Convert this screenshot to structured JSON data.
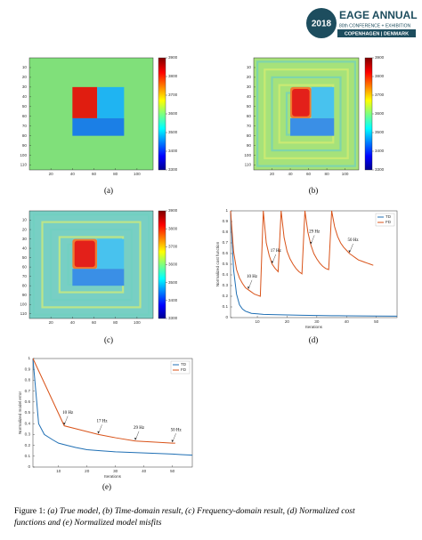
{
  "logo": {
    "year": "2018",
    "title": "EAGE ANNUAL",
    "subtitle": "80th CONFERENCE + EXHIBITION",
    "location": "COPENHAGEN | DENMARK"
  },
  "chart_data": [
    {
      "type": "heatmap",
      "variant": "true",
      "xlim": [
        0,
        115
      ],
      "ylim": [
        0,
        115
      ],
      "xticks": [
        20,
        40,
        60,
        80,
        100
      ],
      "yticks": [
        10,
        20,
        30,
        40,
        50,
        60,
        70,
        80,
        90,
        100,
        110
      ],
      "clim": [
        3300,
        3900
      ],
      "cticks": [
        3300,
        3400,
        3500,
        3600,
        3700,
        3800,
        3900
      ]
    },
    {
      "type": "heatmap",
      "variant": "td",
      "xlim": [
        0,
        115
      ],
      "ylim": [
        0,
        115
      ],
      "xticks": [
        20,
        40,
        60,
        80,
        100
      ],
      "yticks": [
        10,
        20,
        30,
        40,
        50,
        60,
        70,
        80,
        90,
        100,
        110
      ],
      "clim": [
        3300,
        3900
      ],
      "cticks": [
        3300,
        3400,
        3500,
        3600,
        3700,
        3800,
        3900
      ]
    },
    {
      "type": "heatmap",
      "variant": "fd",
      "xlim": [
        0,
        115
      ],
      "ylim": [
        0,
        115
      ],
      "xticks": [
        20,
        40,
        60,
        80,
        100
      ],
      "yticks": [
        10,
        20,
        30,
        40,
        50,
        60,
        70,
        80,
        90,
        100,
        110
      ],
      "clim": [
        3300,
        3900
      ],
      "cticks": [
        3300,
        3400,
        3500,
        3600,
        3700,
        3800,
        3900
      ]
    },
    {
      "type": "line",
      "xlabel": "Iterations",
      "ylabel": "Normalized cost function",
      "xlim": [
        1,
        57
      ],
      "ylim": [
        0,
        1
      ],
      "xticks": [
        10,
        20,
        30,
        40,
        50
      ],
      "yticks": [
        0,
        0.1,
        0.2,
        0.3,
        0.4,
        0.5,
        0.6,
        0.7,
        0.8,
        0.9,
        1
      ],
      "legend": "upper right",
      "series": [
        {
          "name": "TD",
          "color": "#1f6fb4",
          "x": [
            1,
            2,
            3,
            4,
            5,
            6,
            7,
            8,
            10,
            12,
            15,
            20,
            25,
            30,
            35,
            40,
            45,
            50,
            57
          ],
          "values": [
            1,
            0.45,
            0.22,
            0.12,
            0.08,
            0.06,
            0.05,
            0.04,
            0.035,
            0.03,
            0.028,
            0.025,
            0.022,
            0.02,
            0.018,
            0.017,
            0.016,
            0.015,
            0.014
          ]
        },
        {
          "name": "FD",
          "color": "#d95319",
          "x": [
            1,
            2,
            3,
            4,
            5,
            6,
            7,
            8,
            9,
            10,
            11,
            12,
            13,
            14,
            15,
            16,
            17,
            18,
            19,
            20,
            21,
            22,
            23,
            24,
            25,
            26,
            27,
            28,
            29,
            30,
            31,
            32,
            33,
            34,
            35,
            36,
            37,
            38,
            39,
            40,
            41,
            42,
            43,
            44,
            45,
            46,
            47,
            48,
            49
          ],
          "values": [
            1,
            0.62,
            0.45,
            0.37,
            0.32,
            0.28,
            0.26,
            0.24,
            0.22,
            0.21,
            0.2,
            1,
            0.7,
            0.58,
            0.5,
            0.46,
            0.43,
            1,
            0.75,
            0.62,
            0.55,
            0.5,
            0.46,
            0.43,
            0.41,
            1,
            0.8,
            0.68,
            0.6,
            0.55,
            0.51,
            0.48,
            0.46,
            0.45,
            1,
            0.85,
            0.76,
            0.7,
            0.66,
            0.63,
            0.6,
            0.58,
            0.56,
            0.54,
            0.53,
            0.52,
            0.51,
            0.5,
            0.49
          ]
        }
      ],
      "annotations": [
        {
          "text": "10 Hz",
          "x": 7,
          "y": 0.26
        },
        {
          "text": "17 Hz",
          "x": 15,
          "y": 0.5
        },
        {
          "text": "29 Hz",
          "x": 28,
          "y": 0.68
        },
        {
          "text": "50 Hz",
          "x": 41,
          "y": 0.6
        }
      ]
    },
    {
      "type": "line",
      "xlabel": "Iterations",
      "ylabel": "Normalized model error",
      "xlim": [
        1,
        57
      ],
      "ylim": [
        0,
        1
      ],
      "xticks": [
        10,
        20,
        30,
        40,
        50
      ],
      "yticks": [
        0,
        0.1,
        0.2,
        0.3,
        0.4,
        0.5,
        0.6,
        0.7,
        0.8,
        0.9,
        1
      ],
      "legend": "upper right",
      "series": [
        {
          "name": "TD",
          "color": "#1f6fb4",
          "x": [
            1,
            2,
            3,
            5,
            8,
            10,
            13,
            16,
            20,
            25,
            30,
            35,
            40,
            45,
            50,
            53,
            57
          ],
          "values": [
            1,
            0.7,
            0.4,
            0.3,
            0.25,
            0.22,
            0.2,
            0.18,
            0.16,
            0.15,
            0.14,
            0.135,
            0.13,
            0.125,
            0.12,
            0.115,
            0.11
          ]
        },
        {
          "name": "FD",
          "color": "#d95319",
          "x": [
            1,
            12,
            18,
            24,
            30,
            37,
            44,
            50,
            51
          ],
          "values": [
            1,
            0.38,
            0.34,
            0.3,
            0.27,
            0.24,
            0.23,
            0.22,
            0.22
          ]
        }
      ],
      "annotations": [
        {
          "text": "10 Hz",
          "x": 12,
          "y": 0.38
        },
        {
          "text": "17 Hz",
          "x": 24,
          "y": 0.3
        },
        {
          "text": "29 Hz",
          "x": 37,
          "y": 0.24
        },
        {
          "text": "50 Hz",
          "x": 50,
          "y": 0.22
        }
      ]
    }
  ],
  "panel_labels": [
    "(a)",
    "(b)",
    "(c)",
    "(d)",
    "(e)"
  ],
  "caption": {
    "label": "Figure 1:",
    "lines": [
      "(a) True model, (b) Time-domain result, (c) Frequency-domain result, (d) Normalized cost",
      "functions and (e) Normalized model misfits"
    ]
  }
}
